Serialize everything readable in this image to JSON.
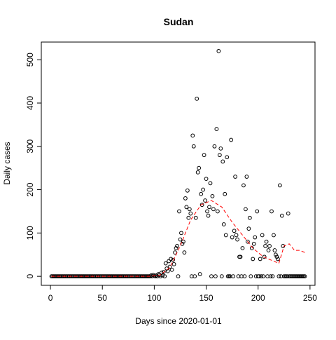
{
  "chart_data": {
    "type": "scatter",
    "title": "Sudan",
    "xlabel": "Days since 2020-01-01",
    "ylabel": "Daily cases",
    "xlim": [
      -8.8,
      254.8
    ],
    "ylim": [
      -20.8,
      540.8
    ],
    "xticks": [
      0,
      50,
      100,
      150,
      200,
      250
    ],
    "yticks": [
      0,
      100,
      200,
      300,
      400,
      500
    ],
    "x": [
      1,
      2,
      3,
      4,
      5,
      6,
      7,
      8,
      9,
      10,
      11,
      12,
      13,
      14,
      15,
      16,
      17,
      18,
      19,
      20,
      21,
      22,
      23,
      24,
      25,
      26,
      27,
      28,
      29,
      30,
      31,
      32,
      33,
      34,
      35,
      36,
      37,
      38,
      39,
      40,
      41,
      42,
      43,
      44,
      45,
      46,
      47,
      48,
      49,
      50,
      51,
      52,
      53,
      54,
      55,
      56,
      57,
      58,
      59,
      60,
      61,
      62,
      63,
      64,
      65,
      66,
      67,
      68,
      69,
      70,
      71,
      72,
      73,
      74,
      75,
      76,
      77,
      78,
      79,
      80,
      81,
      82,
      83,
      84,
      85,
      86,
      87,
      88,
      89,
      90,
      91,
      92,
      93,
      94,
      95,
      96,
      97,
      98,
      99,
      100,
      101,
      102,
      103,
      104,
      105,
      106,
      107,
      108,
      109,
      110,
      111,
      112,
      113,
      114,
      115,
      116,
      117,
      118,
      119,
      120,
      121,
      122,
      123,
      124,
      125,
      126,
      127,
      128,
      129,
      130,
      131,
      132,
      133,
      134,
      135,
      136,
      137,
      138,
      139,
      140,
      141,
      142,
      143,
      144,
      145,
      146,
      147,
      148,
      149,
      150,
      151,
      152,
      153,
      154,
      155,
      156,
      157,
      158,
      159,
      160,
      161,
      162,
      163,
      164,
      165,
      166,
      167,
      168,
      169,
      170,
      171,
      172,
      173,
      174,
      175,
      176,
      177,
      178,
      179,
      180,
      181,
      182,
      183,
      184,
      185,
      186,
      187,
      188,
      189,
      190,
      191,
      192,
      193,
      194,
      195,
      196,
      197,
      198,
      199,
      200,
      201,
      202,
      203,
      204,
      205,
      206,
      207,
      208,
      209,
      210,
      211,
      212,
      213,
      214,
      215,
      216,
      217,
      218,
      219,
      220,
      221,
      222,
      223,
      224,
      225,
      226,
      227,
      228,
      229,
      230,
      231,
      232,
      233,
      234,
      235,
      236,
      237,
      238,
      239,
      240,
      241,
      242,
      243,
      244,
      245
    ],
    "series": [
      {
        "color": "#000000",
        "values": [
          0,
          0,
          0,
          0,
          0,
          0,
          0,
          0,
          0,
          0,
          0,
          0,
          0,
          0,
          0,
          0,
          0,
          0,
          0,
          0,
          0,
          0,
          0,
          0,
          0,
          0,
          0,
          0,
          0,
          0,
          0,
          0,
          0,
          0,
          0,
          0,
          0,
          0,
          0,
          0,
          0,
          0,
          0,
          0,
          0,
          0,
          0,
          0,
          0,
          0,
          0,
          0,
          0,
          0,
          0,
          0,
          0,
          0,
          0,
          0,
          0,
          0,
          0,
          0,
          0,
          0,
          0,
          0,
          0,
          0,
          0,
          0,
          0,
          0,
          0,
          0,
          0,
          0,
          0,
          0,
          0,
          0,
          0,
          0,
          0,
          0,
          0,
          0,
          0,
          0,
          0,
          0,
          0,
          0,
          0,
          0,
          2,
          0,
          3,
          1,
          0,
          2,
          0,
          5,
          3,
          0,
          8,
          2,
          10,
          0,
          30,
          18,
          12,
          35,
          22,
          40,
          15,
          38,
          28,
          55,
          65,
          70,
          0,
          150,
          85,
          100,
          75,
          80,
          55,
          180,
          160,
          198,
          135,
          155,
          145,
          0,
          325,
          300,
          0,
          135,
          410,
          240,
          250,
          5,
          190,
          165,
          200,
          280,
          175,
          225,
          150,
          140,
          160,
          215,
          0,
          185,
          155,
          300,
          0,
          340,
          150,
          520,
          280,
          295,
          0,
          265,
          120,
          190,
          95,
          275,
          0,
          0,
          0,
          315,
          90,
          0,
          105,
          230,
          95,
          85,
          0,
          45,
          45,
          0,
          65,
          210,
          0,
          155,
          230,
          80,
          110,
          135,
          0,
          65,
          40,
          75,
          90,
          0,
          150,
          0,
          0,
          40,
          0,
          95,
          0,
          45,
          70,
          80,
          0,
          60,
          70,
          0,
          150,
          0,
          95,
          60,
          50,
          45,
          40,
          0,
          210,
          0,
          140,
          70,
          0,
          0,
          0,
          0,
          145,
          0,
          0,
          0,
          0,
          0,
          0,
          0,
          0,
          0,
          0,
          0,
          0,
          0,
          0,
          0,
          0
        ]
      }
    ],
    "smooth": {
      "color": "#ff0000",
      "x": [
        1,
        50,
        95,
        105,
        115,
        125,
        135,
        145,
        155,
        165,
        175,
        185,
        195,
        205,
        215,
        220,
        225,
        230,
        235,
        240,
        245
      ],
      "values": [
        0,
        0,
        0,
        2,
        20,
        70,
        130,
        165,
        175,
        160,
        125,
        95,
        65,
        45,
        35,
        30,
        70,
        75,
        60,
        60,
        55
      ]
    }
  }
}
